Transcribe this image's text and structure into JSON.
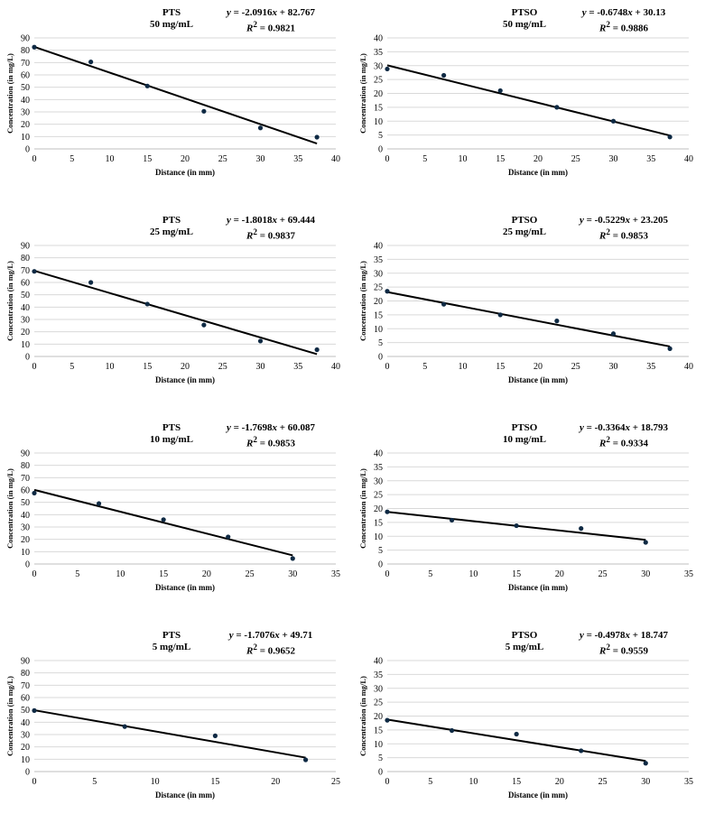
{
  "figure": {
    "x_axis_label": "Distance (in mm)",
    "y_axis_label": "Concentration (in mg/L)"
  },
  "chart_data": [
    {
      "type": "scatter",
      "title": "PTS",
      "subtitle": "50 mg/mL",
      "equation": {
        "y": "y",
        "mid": " = -2.0916",
        "x": "x",
        "rest": " + 82.767",
        "r": "R",
        "sup": "2",
        "rval": " = 0.9821"
      },
      "x": [
        0,
        7.5,
        15,
        22.5,
        30,
        37.5
      ],
      "y": [
        82.5,
        70.5,
        51,
        30.5,
        17,
        9.5
      ],
      "trendline": {
        "slope": -2.0916,
        "intercept": 82.767
      },
      "xlim": [
        0,
        40
      ],
      "xticks": [
        0,
        5,
        10,
        15,
        20,
        25,
        30,
        35,
        40
      ],
      "ylim": [
        0,
        90
      ],
      "yticks": [
        0,
        10,
        20,
        30,
        40,
        50,
        60,
        70,
        80,
        90
      ],
      "xlabel": "Distance (in mm)",
      "ylabel": "Concentration (in mg/L)",
      "grid": true
    },
    {
      "type": "scatter",
      "title": "PTSO",
      "subtitle": "50 mg/mL",
      "equation": {
        "y": "y",
        "mid": " = -0.6748",
        "x": "x",
        "rest": " + 30.13",
        "r": "R",
        "sup": "2",
        "rval": " = 0.9886"
      },
      "x": [
        0,
        7.5,
        15,
        22.5,
        30,
        37.5
      ],
      "y": [
        28.8,
        26.5,
        21,
        15,
        10,
        4.3
      ],
      "trendline": {
        "slope": -0.6748,
        "intercept": 30.13
      },
      "xlim": [
        0,
        40
      ],
      "xticks": [
        0,
        5,
        10,
        15,
        20,
        25,
        30,
        35,
        40
      ],
      "ylim": [
        0,
        40
      ],
      "yticks": [
        0,
        5,
        10,
        15,
        20,
        25,
        30,
        35,
        40
      ],
      "xlabel": "Distance (in mm)",
      "ylabel": "Concentration (in mg/L)",
      "grid": true
    },
    {
      "type": "scatter",
      "title": "PTS",
      "subtitle": "25 mg/mL",
      "equation": {
        "y": "y",
        "mid": " = -1.8018",
        "x": "x",
        "rest": " + 69.444",
        "r": "R",
        "sup": "2",
        "rval": " = 0.9837"
      },
      "x": [
        0,
        7.5,
        15,
        22.5,
        30,
        37.5
      ],
      "y": [
        69,
        60,
        42.5,
        25.5,
        12.5,
        5.5
      ],
      "trendline": {
        "slope": -1.8018,
        "intercept": 69.444
      },
      "xlim": [
        0,
        40
      ],
      "xticks": [
        0,
        5,
        10,
        15,
        20,
        25,
        30,
        35,
        40
      ],
      "ylim": [
        0,
        90
      ],
      "yticks": [
        0,
        10,
        20,
        30,
        40,
        50,
        60,
        70,
        80,
        90
      ],
      "xlabel": "Distance (in mm)",
      "ylabel": "Concentration (in mg/L)",
      "grid": true
    },
    {
      "type": "scatter",
      "title": "PTSO",
      "subtitle": "25 mg/mL",
      "equation": {
        "y": "y",
        "mid": " = -0.5229",
        "x": "x",
        "rest": " + 23.205",
        "r": "R",
        "sup": "2",
        "rval": " = 0.9853"
      },
      "x": [
        0,
        7.5,
        15,
        22.5,
        30,
        37.5
      ],
      "y": [
        23.5,
        18.8,
        15,
        12.8,
        8.2,
        2.8
      ],
      "trendline": {
        "slope": -0.5229,
        "intercept": 23.205
      },
      "xlim": [
        0,
        40
      ],
      "xticks": [
        0,
        5,
        10,
        15,
        20,
        25,
        30,
        35,
        40
      ],
      "ylim": [
        0,
        40
      ],
      "yticks": [
        0,
        5,
        10,
        15,
        20,
        25,
        30,
        35,
        40
      ],
      "xlabel": "Distance (in mm)",
      "ylabel": "Concentration (in mg/L)",
      "grid": true
    },
    {
      "type": "scatter",
      "title": "PTS",
      "subtitle": "10 mg/mL",
      "equation": {
        "y": "y",
        "mid": " = -1.7698",
        "x": "x",
        "rest": " + 60.087",
        "r": "R",
        "sup": "2",
        "rval": " = 0.9853"
      },
      "x": [
        0,
        7.5,
        15,
        22.5,
        30
      ],
      "y": [
        57.5,
        49,
        36,
        22,
        4.5
      ],
      "trendline": {
        "slope": -1.7698,
        "intercept": 60.087
      },
      "xlim": [
        0,
        35
      ],
      "xticks": [
        0,
        5,
        10,
        15,
        20,
        25,
        30,
        35
      ],
      "ylim": [
        0,
        90
      ],
      "yticks": [
        0,
        10,
        20,
        30,
        40,
        50,
        60,
        70,
        80,
        90
      ],
      "xlabel": "Distance (in mm)",
      "ylabel": "Concentration (in mg/L)",
      "grid": true
    },
    {
      "type": "scatter",
      "title": "PTSO",
      "subtitle": "10 mg/mL",
      "equation": {
        "y": "y",
        "mid": " = -0.3364",
        "x": "x",
        "rest": " + 18.793",
        "r": "R",
        "sup": "2",
        "rval": " = 0.9334"
      },
      "x": [
        0,
        7.5,
        15,
        22.5,
        30
      ],
      "y": [
        18.8,
        15.8,
        13.8,
        12.8,
        7.8
      ],
      "trendline": {
        "slope": -0.3364,
        "intercept": 18.793
      },
      "xlim": [
        0,
        35
      ],
      "xticks": [
        0,
        5,
        10,
        15,
        20,
        25,
        30,
        35
      ],
      "ylim": [
        0,
        40
      ],
      "yticks": [
        0,
        5,
        10,
        15,
        20,
        25,
        30,
        35,
        40
      ],
      "xlabel": "Distance (in mm)",
      "ylabel": "Concentration (in mg/L)",
      "grid": true
    },
    {
      "type": "scatter",
      "title": "PTS",
      "subtitle": "5 mg/mL",
      "equation": {
        "y": "y",
        "mid": " = -1.7076",
        "x": "x",
        "rest": " + 49.71",
        "r": "R",
        "sup": "2",
        "rval": " = 0.9652"
      },
      "x": [
        0,
        7.5,
        15,
        22.5
      ],
      "y": [
        49.5,
        36.5,
        29,
        9.5
      ],
      "trendline": {
        "slope": -1.7076,
        "intercept": 49.71
      },
      "xlim": [
        0,
        25
      ],
      "xticks": [
        0,
        5,
        10,
        15,
        20,
        25
      ],
      "ylim": [
        0,
        90
      ],
      "yticks": [
        0,
        10,
        20,
        30,
        40,
        50,
        60,
        70,
        80,
        90
      ],
      "xlabel": "Distance (in mm)",
      "ylabel": "Concentration (in mg/L)",
      "grid": true
    },
    {
      "type": "scatter",
      "title": "PTSO",
      "subtitle": "5 mg/mL",
      "equation": {
        "y": "y",
        "mid": " = -0.4978",
        "x": "x",
        "rest": " + 18.747",
        "r": "R",
        "sup": "2",
        "rval": " = 0.9559"
      },
      "x": [
        0,
        7.5,
        15,
        22.5,
        30
      ],
      "y": [
        18.5,
        14.8,
        13.5,
        7.5,
        3
      ],
      "trendline": {
        "slope": -0.4978,
        "intercept": 18.747
      },
      "xlim": [
        0,
        35
      ],
      "xticks": [
        0,
        5,
        10,
        15,
        20,
        25,
        30,
        35
      ],
      "ylim": [
        0,
        40
      ],
      "yticks": [
        0,
        5,
        10,
        15,
        20,
        25,
        30,
        35,
        40
      ],
      "xlabel": "Distance (in mm)",
      "ylabel": "Concentration (in mg/L)",
      "grid": true
    }
  ]
}
